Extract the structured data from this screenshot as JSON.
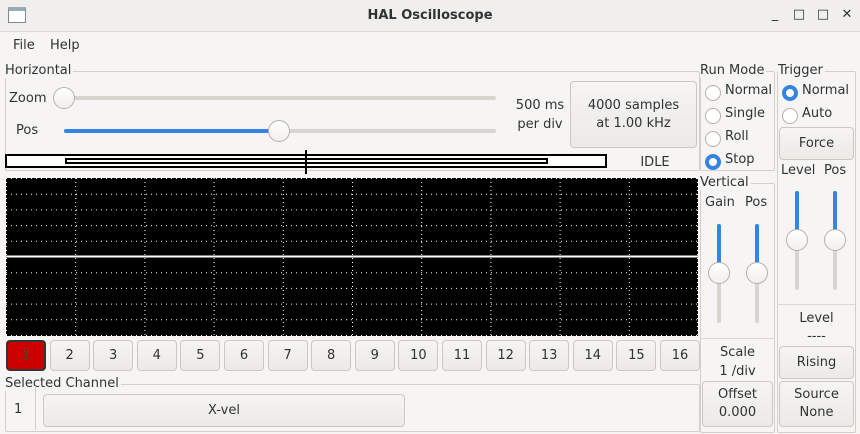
{
  "window": {
    "title": "HAL Oscilloscope",
    "controls": [
      "_",
      "□",
      "✕"
    ]
  },
  "menu": [
    "File",
    "Help"
  ],
  "horizontal": {
    "label": "Horizontal",
    "zoom_label": "Zoom",
    "pos_label": "Pos",
    "zoom_value": 0,
    "pos_value": 0.5,
    "timebase": "500 ms",
    "timebase2": "per div",
    "samples": "4000 samples",
    "rate": "at 1.00 kHz",
    "status": "IDLE"
  },
  "run_mode": {
    "label": "Run Mode",
    "options": [
      "Normal",
      "Single",
      "Roll",
      "Stop"
    ],
    "selected": "Stop"
  },
  "trigger": {
    "label": "Trigger",
    "options": [
      "Normal",
      "Auto"
    ],
    "selected": "Normal",
    "force": "Force",
    "level_label": "Level",
    "pos_label": "Pos",
    "level_value": 0.5,
    "pos_value": 0.5,
    "level_title": "Level",
    "level_readout": "----",
    "edge": "Rising",
    "source_label": "Source",
    "source_value": "None"
  },
  "vertical": {
    "label": "Vertical",
    "gain_label": "Gain",
    "pos_label": "Pos",
    "gain_value": 0.5,
    "pos_value": 0.5,
    "scale_label": "Scale",
    "scale_value": "1 /div",
    "offset_label": "Offset",
    "offset_value": "0.000"
  },
  "channels": [
    "1",
    "2",
    "3",
    "4",
    "5",
    "6",
    "7",
    "8",
    "9",
    "10",
    "11",
    "12",
    "13",
    "14",
    "15",
    "16"
  ],
  "selected_channel": {
    "label": "Selected Channel",
    "number": "1",
    "name": "X-vel"
  },
  "colors": {
    "accent": "#3584e4",
    "active_channel": "#cc0000",
    "scope_bg": "#000000"
  }
}
